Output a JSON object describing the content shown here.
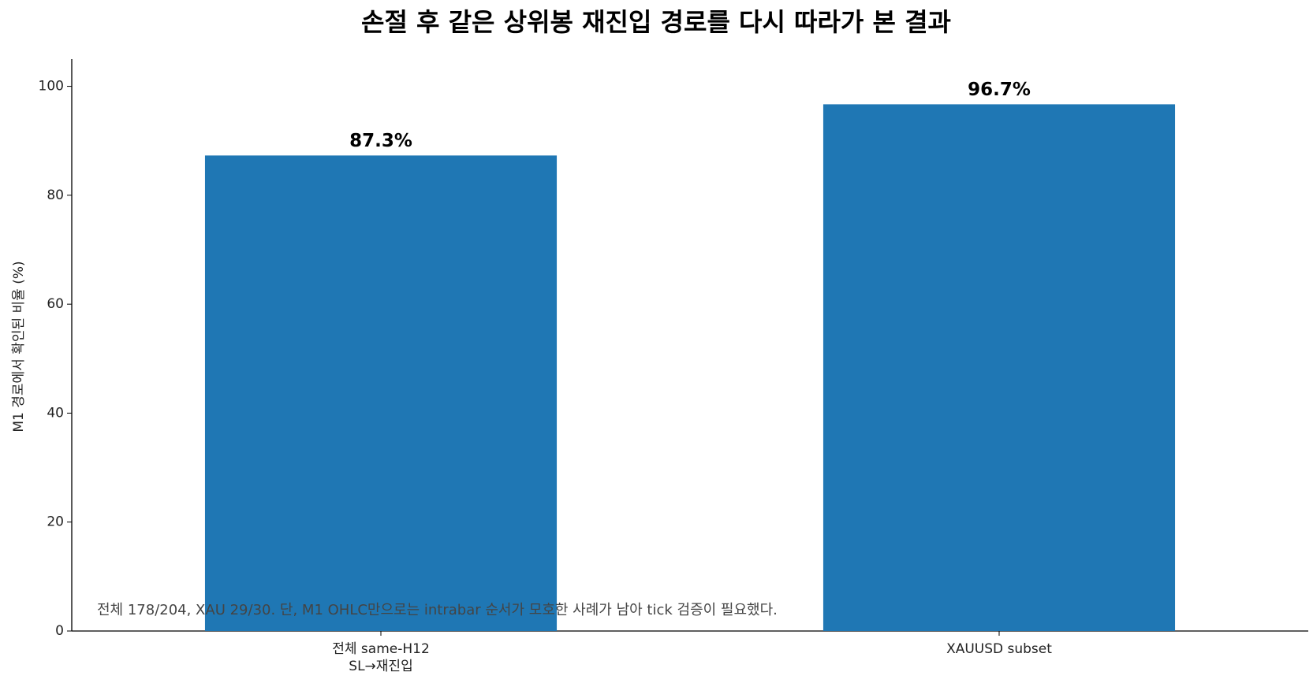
{
  "chart_data": {
    "type": "bar",
    "title": "손절 후 같은 상위봉 재진입 경로를 다시 따라가 본 결과",
    "categories": [
      "전체 same-H12\nSL→재진입",
      "XAUUSD subset"
    ],
    "values": [
      87.3,
      96.7
    ],
    "value_labels": [
      "87.3%",
      "96.7%"
    ],
    "color": "#1f77b4",
    "y_label": "M1 경로에서 확인된 비율 (%)",
    "annotation": "전체 178/204, XAU 29/30. 단, M1 OHLC만으로는 intrabar 순서가 모호한 사례가 남아 tick 검증이 필요했다.",
    "ylim": [
      0,
      105
    ],
    "yticks": [
      0,
      20,
      40,
      60,
      80,
      100
    ],
    "grid": false
  }
}
